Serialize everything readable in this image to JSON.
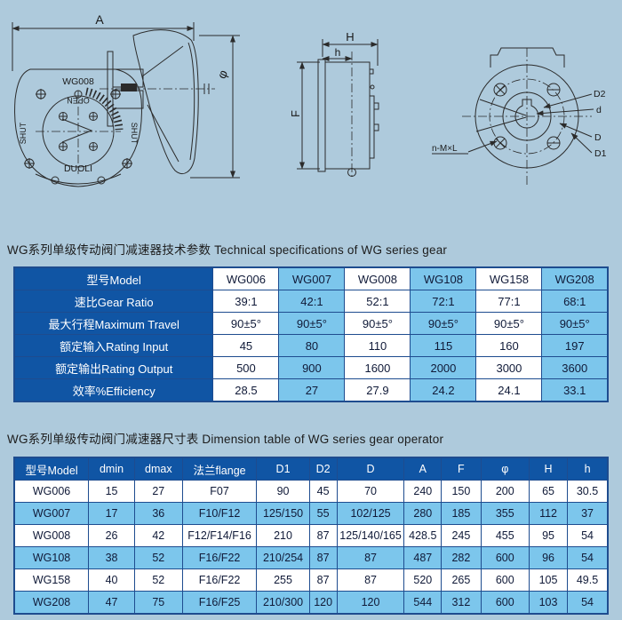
{
  "page": {
    "colors": {
      "page_bg": "#aecadc",
      "header_blue": "#1055a4",
      "stripe_blue": "#7cc6ec",
      "border_blue": "#1e4c8f"
    }
  },
  "drawings": {
    "front_view": {
      "dim_a": "A",
      "dim_phi": "φ",
      "model": "WG008",
      "open": "OPEN",
      "shut": "SHUT",
      "brand": "DUOLI"
    },
    "side_view": {
      "dim_H": "H",
      "dim_h": "h",
      "dim_F": "F"
    },
    "rear_view": {
      "d2": "D2",
      "d": "d",
      "D": "D",
      "d1": "D1",
      "bolts": "n-M×L"
    }
  },
  "spec_section": {
    "title": "WG系列单级传动阀门减速器技术参数 Technical specifications of WG series gear",
    "table": {
      "header": [
        "型号Model",
        "WG006",
        "WG007",
        "WG008",
        "WG108",
        "WG158",
        "WG208"
      ],
      "rows": [
        {
          "label": "速比Gear Ratio",
          "values": [
            "39:1",
            "42:1",
            "52:1",
            "72:1",
            "77:1",
            "68:1"
          ]
        },
        {
          "label": "最大行程Maximum Travel",
          "values": [
            "90±5°",
            "90±5°",
            "90±5°",
            "90±5°",
            "90±5°",
            "90±5°"
          ]
        },
        {
          "label": "额定输入Rating Input",
          "values": [
            "45",
            "80",
            "110",
            "115",
            "160",
            "197"
          ]
        },
        {
          "label": "额定输出Rating Output",
          "values": [
            "500",
            "900",
            "1600",
            "2000",
            "3000",
            "3600"
          ]
        },
        {
          "label": "效率%Efficiency",
          "values": [
            "28.5",
            "27",
            "27.9",
            "24.2",
            "24.1",
            "33.1"
          ]
        }
      ]
    }
  },
  "dim_section": {
    "title": "WG系列单级传动阀门减速器尺寸表 Dimension table of WG series gear operator",
    "table": {
      "header": [
        "型号Model",
        "dmin",
        "dmax",
        "法兰flange",
        "D1",
        "D2",
        "D",
        "A",
        "F",
        "φ",
        "H",
        "h"
      ],
      "rows": [
        [
          "WG006",
          "15",
          "27",
          "F07",
          "90",
          "45",
          "70",
          "240",
          "150",
          "200",
          "65",
          "30.5"
        ],
        [
          "WG007",
          "17",
          "36",
          "F10/F12",
          "125/150",
          "55",
          "102/125",
          "280",
          "185",
          "355",
          "112",
          "37"
        ],
        [
          "WG008",
          "26",
          "42",
          "F12/F14/F16",
          "210",
          "87",
          "125/140/165",
          "428.5",
          "245",
          "455",
          "95",
          "54"
        ],
        [
          "WG108",
          "38",
          "52",
          "F16/F22",
          "210/254",
          "87",
          "87",
          "487",
          "282",
          "600",
          "96",
          "54"
        ],
        [
          "WG158",
          "40",
          "52",
          "F16/F22",
          "255",
          "87",
          "87",
          "520",
          "265",
          "600",
          "105",
          "49.5"
        ],
        [
          "WG208",
          "47",
          "75",
          "F16/F25",
          "210/300",
          "120",
          "120",
          "544",
          "312",
          "600",
          "103",
          "54"
        ]
      ]
    }
  }
}
